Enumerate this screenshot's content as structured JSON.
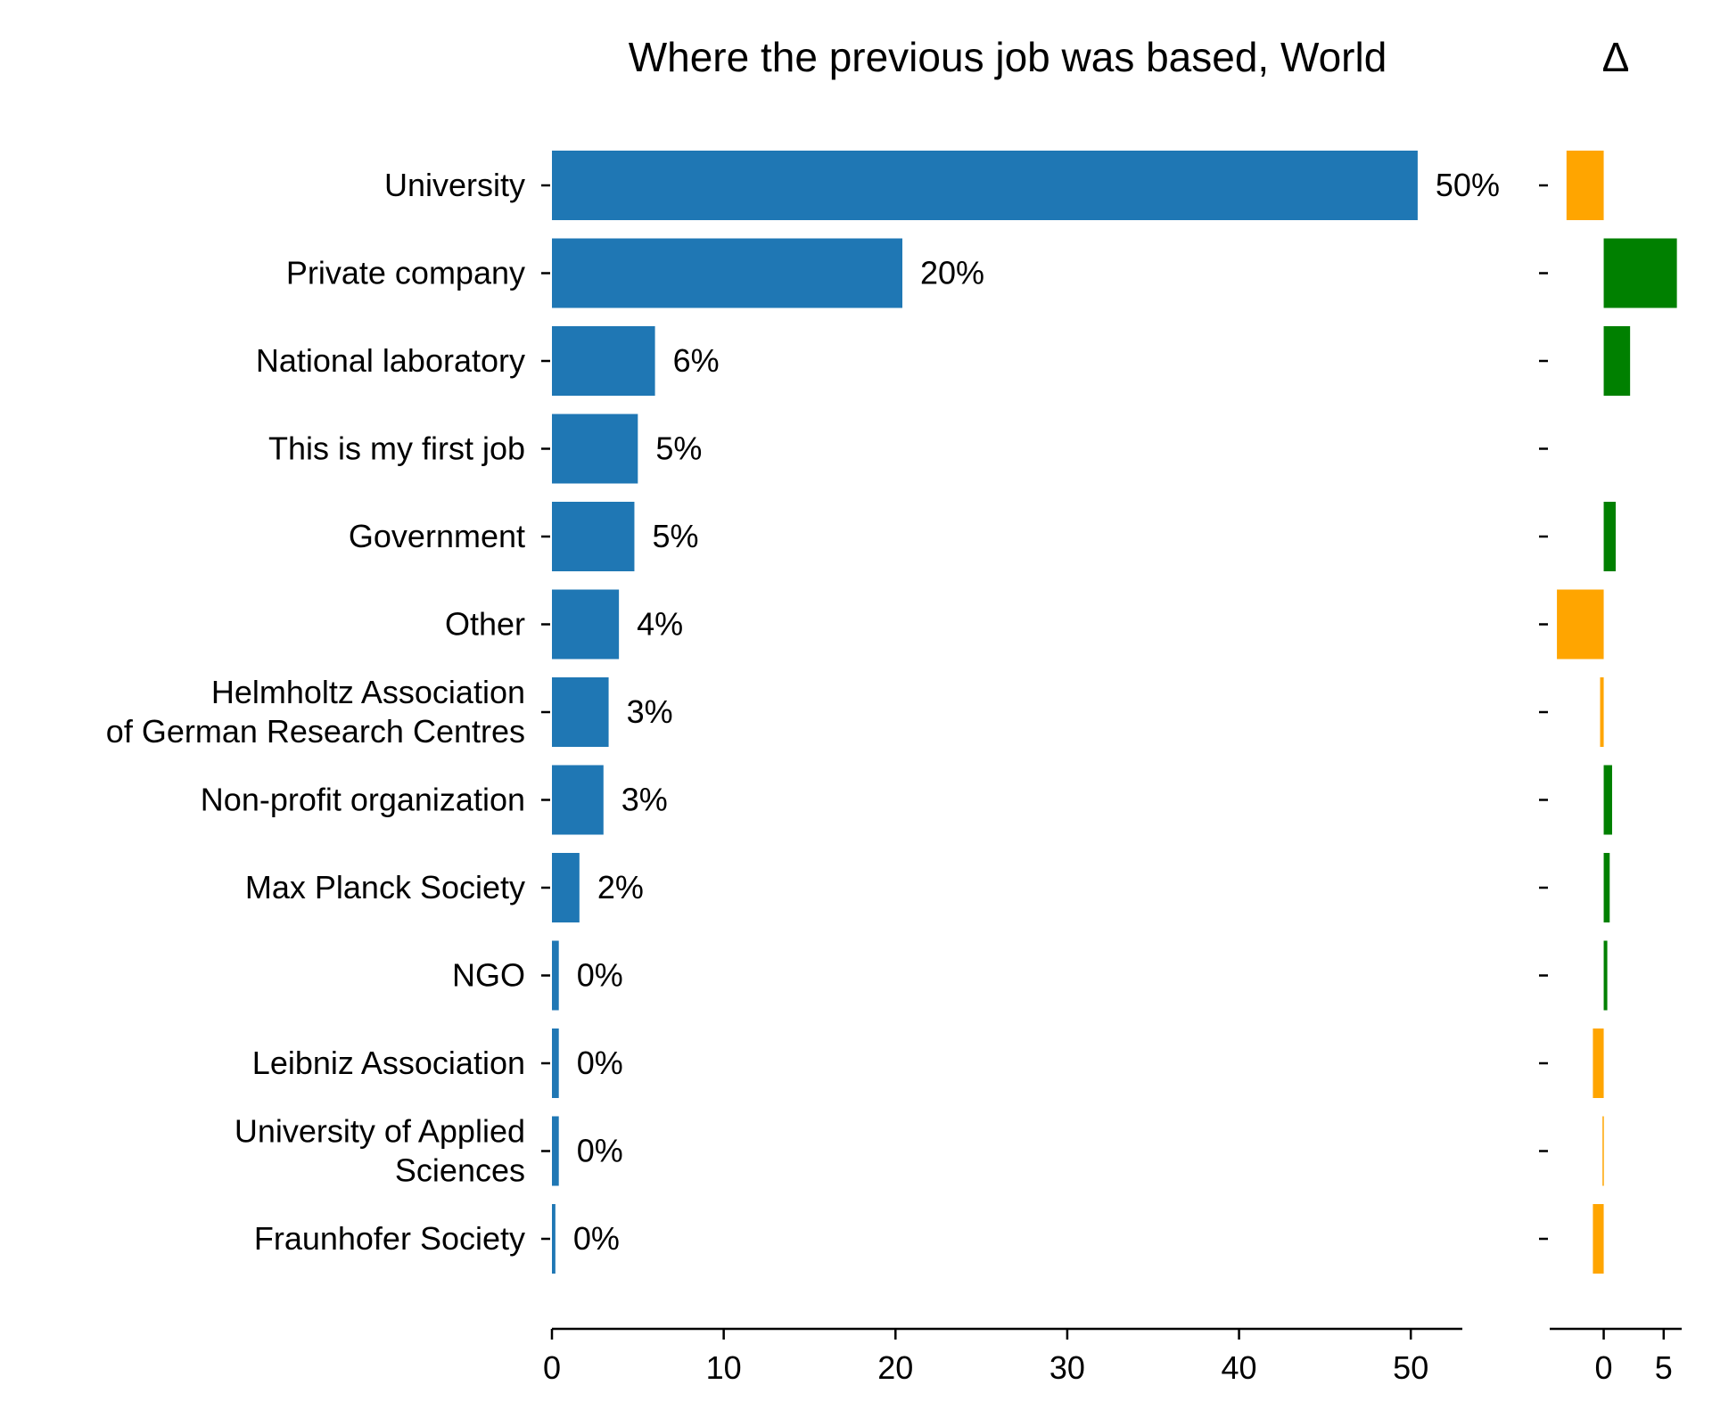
{
  "chart_data": [
    {
      "type": "bar",
      "orientation": "horizontal",
      "title": "Where the previous job was based, World",
      "categories": [
        [
          "University"
        ],
        [
          "Private company"
        ],
        [
          "National laboratory"
        ],
        [
          "This is my first job"
        ],
        [
          "Government"
        ],
        [
          "Other"
        ],
        [
          "Helmholtz Association",
          "of German Research Centres"
        ],
        [
          "Non-profit organization"
        ],
        [
          "Max Planck Society"
        ],
        [
          "NGO"
        ],
        [
          "Leibniz Association"
        ],
        [
          "University of Applied",
          "Sciences"
        ],
        [
          "Fraunhofer Society"
        ]
      ],
      "values": [
        50.4,
        20.4,
        6.0,
        5.0,
        4.8,
        3.9,
        3.3,
        3.0,
        1.6,
        0.4,
        0.4,
        0.4,
        0.2
      ],
      "value_labels": [
        "50%",
        "20%",
        "6%",
        "5%",
        "5%",
        "4%",
        "3%",
        "3%",
        "2%",
        "0%",
        "0%",
        "0%",
        "0%"
      ],
      "xlim": [
        0,
        53
      ],
      "xticks": [
        0,
        10,
        20,
        30,
        40,
        50
      ],
      "color": "#1f77b4"
    },
    {
      "type": "bar",
      "orientation": "horizontal",
      "title": "Δ",
      "categories_shared": true,
      "values": [
        -3.1,
        6.1,
        2.2,
        0.0,
        1.0,
        -3.9,
        -0.3,
        0.7,
        0.5,
        0.3,
        -0.9,
        -0.1,
        -0.9
      ],
      "xlim": [
        -4.5,
        6.5
      ],
      "xticks": [
        0,
        5
      ],
      "positive_color": "#008000",
      "negative_color": "#ffa500"
    }
  ]
}
